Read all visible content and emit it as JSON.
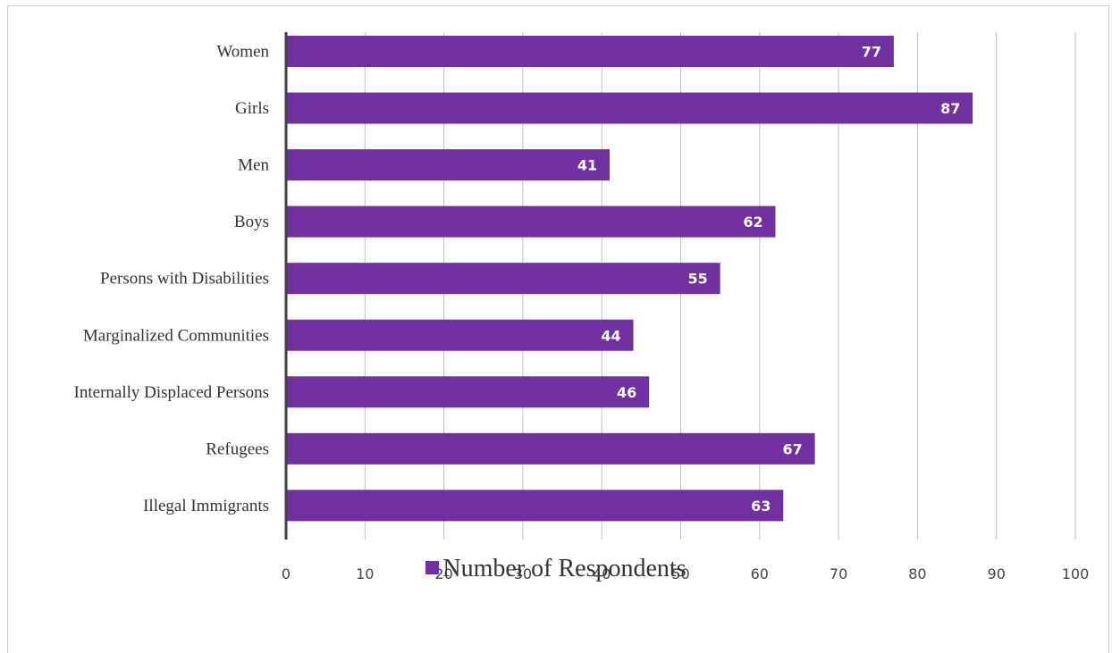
{
  "colors": {
    "bar": "#7030a0",
    "grid": "#bfbfbf",
    "axis": "#404040",
    "label": "#ffffff"
  },
  "chart_data": {
    "type": "bar",
    "orientation": "horizontal",
    "categories": [
      "Women",
      "Girls",
      "Men",
      "Boys",
      "Persons with Disabilities",
      "Marginalized Communities",
      "Internally Displaced Persons",
      "Refugees",
      "Illegal Immigrants"
    ],
    "series": [
      {
        "name": "Number of Respondents",
        "values": [
          77,
          87,
          41,
          62,
          55,
          44,
          46,
          67,
          63
        ]
      }
    ],
    "xlim": [
      0,
      100
    ],
    "xticks": [
      0,
      10,
      20,
      30,
      40,
      50,
      60,
      70,
      80,
      90,
      100
    ],
    "grid": true,
    "legend": "bottom",
    "data_labels": true
  }
}
